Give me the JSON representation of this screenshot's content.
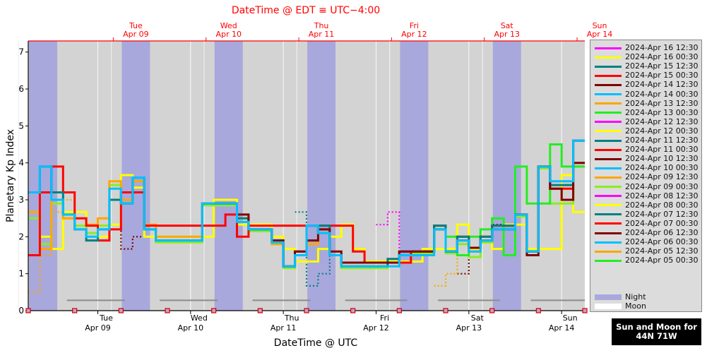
{
  "chart_data": {
    "type": "line",
    "title": "DateTime @ EDT ≡ UTC−4:00",
    "xlabel": "DateTime @ UTC",
    "ylabel": "Planetary Kp Index",
    "ylim": [
      0,
      7.3
    ],
    "yticks": [
      0,
      1,
      2,
      3,
      4,
      5,
      6,
      7
    ],
    "xlim_hours": [
      0,
      144
    ],
    "x_start_utc": "2024-04-08 06:00",
    "bottom_ticks": [
      {
        "day": "Tue",
        "date": "Apr 09"
      },
      {
        "day": "Wed",
        "date": "Apr 10"
      },
      {
        "day": "Thu",
        "date": "Apr 11"
      },
      {
        "day": "Fri",
        "date": "Apr 12"
      },
      {
        "day": "Sat",
        "date": "Apr 13"
      },
      {
        "day": "Sun",
        "date": "Apr 14"
      }
    ],
    "top_ticks": [
      {
        "day": "Tue",
        "date": "Apr 09"
      },
      {
        "day": "Wed",
        "date": "Apr 10"
      },
      {
        "day": "Thu",
        "date": "Apr 11"
      },
      {
        "day": "Fri",
        "date": "Apr 12"
      },
      {
        "day": "Sat",
        "date": "Apr 13"
      },
      {
        "day": "Sun",
        "date": "Apr 14"
      }
    ],
    "night_intervals_hours": [
      [
        0.2,
        7.5
      ],
      [
        24.2,
        31.5
      ],
      [
        48.2,
        55.5
      ],
      [
        72.2,
        79.5
      ],
      [
        96.2,
        103.5
      ],
      [
        120.2,
        127.5
      ]
    ],
    "moon_intervals_hours": [
      [
        10,
        25
      ],
      [
        34,
        49
      ],
      [
        58,
        73
      ],
      [
        82,
        98
      ],
      [
        106,
        122
      ],
      [
        130,
        144
      ]
    ],
    "legend": {
      "placement": "right",
      "entries": [
        {
          "name": "2024-Apr 16 12:30",
          "color": "#ff00ff"
        },
        {
          "name": "2024-Apr 16 00:30",
          "color": "#ffff00"
        },
        {
          "name": "2024-Apr 15 12:30",
          "color": "#008080"
        },
        {
          "name": "2024-Apr 15 00:30",
          "color": "#ff0000"
        },
        {
          "name": "2024-Apr 14 12:30",
          "color": "#800000"
        },
        {
          "name": "2024-Apr 14 00:30",
          "color": "#00bfff"
        },
        {
          "name": "2024-Apr 13 12:30",
          "color": "#ffa500"
        },
        {
          "name": "2024-Apr 13 00:30",
          "color": "#22ee22"
        },
        {
          "name": "2024-Apr 12 12:30",
          "color": "#ff00ff"
        },
        {
          "name": "2024-Apr 12 00:30",
          "color": "#ffff00"
        },
        {
          "name": "2024-Apr 11 12:30",
          "color": "#008080"
        },
        {
          "name": "2024-Apr 11 00:30",
          "color": "#ff0000"
        },
        {
          "name": "2024-Apr 10 12:30",
          "color": "#800000"
        },
        {
          "name": "2024-Apr 10 00:30",
          "color": "#00bfff"
        },
        {
          "name": "2024-Apr 09 12:30",
          "color": "#ffa500"
        },
        {
          "name": "2024-Apr 09 00:30",
          "color": "#88ee22"
        },
        {
          "name": "2024-Apr 08 12:30",
          "color": "#ff00ff"
        },
        {
          "name": "2024-Apr 08 00:30",
          "color": "#ffff00"
        },
        {
          "name": "2024-Apr 07 12:30",
          "color": "#008080"
        },
        {
          "name": "2024-Apr 07 00:30",
          "color": "#ff0000"
        },
        {
          "name": "2024-Apr 06 12:30",
          "color": "#800000"
        },
        {
          "name": "2024-Apr 06 00:30",
          "color": "#00bfff"
        },
        {
          "name": "2024-Apr 05 12:30",
          "color": "#ffa500"
        },
        {
          "name": "2024-Apr 05 00:30",
          "color": "#22ee22"
        }
      ],
      "extra": [
        {
          "name": "Night",
          "color": "#a8a8dc"
        },
        {
          "name": "Moon",
          "color": "#ffffff"
        }
      ]
    },
    "series": [
      {
        "color": "#ff00ff",
        "style": "dotted",
        "x": [
          90,
          93,
          96
        ],
        "y": [
          2.33,
          2.67,
          1.5
        ]
      },
      {
        "color": "#800000",
        "style": "dotted",
        "x": [
          21,
          24,
          27,
          30
        ],
        "y": [
          3.0,
          1.67,
          2.0,
          2.0
        ]
      },
      {
        "color": "#ffa500",
        "style": "dotted",
        "x": [
          0,
          3,
          6,
          9
        ],
        "y": [
          0.5,
          1.5,
          2.67,
          3.0
        ]
      },
      {
        "color": "#008080",
        "style": "dotted",
        "x": [
          69,
          72,
          75,
          78
        ],
        "y": [
          2.67,
          0.67,
          1.0,
          2.0
        ]
      },
      {
        "color": "#800000",
        "style": "dotted",
        "x": [
          111,
          114,
          117,
          120
        ],
        "y": [
          1.0,
          2.0,
          2.0,
          2.33
        ]
      },
      {
        "color": "#ffa500",
        "style": "dotted",
        "x": [
          105,
          108,
          111
        ],
        "y": [
          0.67,
          1.0,
          2.0
        ]
      },
      {
        "color": "#ffff00",
        "style": "solid",
        "x": [
          0,
          3,
          6,
          9,
          12,
          15,
          18,
          21,
          24,
          27,
          30,
          33,
          36,
          39,
          42,
          45,
          48,
          51,
          54,
          57,
          60,
          63,
          66,
          69,
          72,
          75,
          78,
          81,
          84,
          87,
          90,
          93,
          96,
          99,
          102,
          105,
          108,
          111,
          114,
          117,
          120,
          123,
          126,
          129,
          132,
          135,
          138,
          141
        ],
        "y": [
          2.67,
          2.0,
          1.67,
          2.67,
          2.67,
          2.33,
          2.0,
          2.33,
          3.67,
          3.33,
          2.0,
          2.0,
          2.0,
          2.0,
          2.0,
          2.0,
          3.0,
          3.0,
          2.33,
          2.33,
          2.33,
          2.0,
          1.67,
          1.33,
          1.33,
          1.67,
          2.0,
          2.33,
          1.67,
          1.33,
          1.33,
          1.33,
          1.33,
          1.33,
          1.67,
          1.67,
          1.67,
          2.33,
          1.67,
          2.0,
          1.67,
          2.33,
          2.33,
          1.67,
          1.67,
          1.67,
          3.67,
          2.67
        ]
      },
      {
        "color": "#88ee22",
        "style": "solid",
        "x": [
          0,
          3,
          6,
          9,
          12,
          15,
          18,
          21,
          24,
          27,
          30,
          33,
          36,
          39,
          42,
          45,
          48,
          51,
          54,
          57,
          60,
          63,
          66,
          69,
          72,
          75,
          78,
          81,
          84,
          87,
          90,
          93,
          96,
          99,
          102,
          105,
          108,
          111,
          114,
          117,
          120,
          123,
          126,
          129,
          132,
          135,
          138,
          141
        ],
        "y": [
          2.5,
          1.8,
          2.9,
          2.5,
          2.3,
          2.1,
          2.3,
          3.4,
          2.9,
          3.5,
          2.2,
          1.85,
          1.85,
          1.85,
          1.85,
          2.85,
          2.85,
          2.85,
          2.4,
          2.15,
          2.15,
          1.8,
          1.15,
          1.5,
          1.8,
          2.1,
          1.5,
          1.15,
          1.15,
          1.15,
          1.15,
          1.3,
          1.3,
          1.55,
          1.55,
          2.2,
          1.55,
          1.8,
          1.45,
          1.85,
          2.2,
          2.2,
          2.55,
          1.6,
          3.85,
          2.9,
          2.9,
          3.9
        ]
      },
      {
        "color": "#22ee22",
        "style": "solid",
        "x": [
          108,
          111,
          114,
          117,
          120,
          123,
          126,
          129,
          132,
          135,
          138,
          141
        ],
        "y": [
          2.0,
          1.5,
          2.0,
          2.2,
          2.5,
          1.5,
          3.9,
          2.9,
          2.9,
          4.5,
          3.9,
          3.9
        ]
      },
      {
        "color": "#ffa500",
        "style": "solid",
        "x": [
          0,
          3,
          6,
          9,
          12,
          15,
          18,
          21,
          24,
          27,
          30,
          33,
          36,
          39,
          42,
          45,
          48,
          51,
          54,
          57,
          60,
          63,
          66,
          69,
          72,
          75,
          78,
          81,
          84,
          87,
          90,
          93,
          96,
          99,
          102,
          105,
          108,
          111,
          114,
          117,
          120,
          123,
          126,
          129,
          132,
          135,
          138,
          141
        ],
        "y": [
          2.67,
          1.67,
          3.0,
          2.5,
          2.5,
          2.33,
          2.5,
          3.5,
          3.0,
          3.5,
          2.33,
          2.0,
          2.0,
          2.0,
          2.0,
          2.9,
          2.9,
          2.9,
          2.5,
          2.2,
          2.2,
          1.8,
          1.2,
          1.5,
          1.8,
          2.2,
          1.5,
          1.2,
          1.2,
          1.2,
          1.2,
          1.3,
          1.6,
          1.6,
          1.6,
          2.3,
          1.6,
          1.9,
          1.6,
          1.9,
          2.3,
          2.3,
          2.6,
          1.6,
          3.9,
          3.3,
          3.3,
          4.6
        ]
      },
      {
        "color": "#ff0000",
        "style": "solid",
        "x": [
          0,
          3,
          6,
          9,
          12,
          15,
          18,
          21,
          24,
          27,
          30,
          33,
          36,
          39,
          42,
          45,
          48,
          51,
          54,
          57,
          60,
          63,
          66,
          69,
          72,
          75,
          78,
          81,
          84,
          87,
          90,
          93,
          96,
          99,
          102,
          105,
          108,
          111,
          114,
          117,
          120,
          123,
          126,
          129,
          132,
          135,
          138,
          141
        ],
        "y": [
          1.5,
          3.2,
          3.9,
          3.2,
          2.5,
          2.3,
          1.9,
          2.2,
          3.2,
          3.2,
          2.3,
          2.3,
          2.3,
          2.3,
          2.3,
          2.3,
          2.3,
          2.6,
          2.0,
          2.3,
          2.3,
          2.3,
          2.3,
          2.3,
          2.3,
          2.3,
          2.3,
          2.3,
          1.6,
          1.3,
          1.3,
          1.3,
          1.3,
          1.6,
          1.6,
          2.3,
          1.6,
          2.0,
          1.7,
          2.0,
          2.3,
          2.3,
          2.6,
          1.6,
          3.9,
          3.3,
          3.3,
          4.6
        ]
      },
      {
        "color": "#008080",
        "style": "solid",
        "x": [
          0,
          3,
          6,
          9,
          12,
          15,
          18,
          21,
          24,
          27,
          30,
          33,
          36,
          39,
          42,
          45,
          48,
          51,
          54,
          57,
          60,
          63,
          66,
          69,
          72,
          75,
          78,
          81,
          84,
          87,
          90,
          93,
          96,
          99,
          102,
          105,
          108,
          111,
          114,
          117,
          120,
          123,
          126,
          129,
          132,
          135,
          138,
          141
        ],
        "y": [
          3.2,
          3.9,
          3.2,
          2.6,
          2.2,
          1.9,
          2.2,
          3.0,
          2.9,
          3.6,
          2.2,
          1.9,
          1.9,
          1.9,
          1.9,
          2.9,
          2.9,
          2.9,
          2.5,
          2.2,
          2.2,
          1.9,
          1.2,
          1.6,
          2.3,
          2.3,
          1.5,
          1.2,
          1.2,
          1.2,
          1.2,
          1.4,
          1.6,
          1.6,
          1.6,
          2.3,
          1.6,
          2.0,
          1.7,
          2.0,
          2.3,
          2.3,
          2.6,
          1.6,
          3.9,
          3.4,
          3.4,
          4.6
        ]
      },
      {
        "color": "#800000",
        "style": "solid",
        "x": [
          48,
          51,
          54,
          57,
          60,
          63,
          66,
          69,
          72,
          75,
          78,
          81,
          84,
          87,
          90,
          93,
          96,
          99,
          102,
          105,
          108,
          111,
          114,
          117,
          120,
          123,
          126,
          129,
          132,
          135,
          138,
          141
        ],
        "y": [
          2.9,
          2.9,
          2.6,
          2.2,
          2.2,
          1.9,
          1.2,
          1.6,
          1.9,
          2.2,
          1.6,
          1.3,
          1.3,
          1.3,
          1.3,
          1.3,
          1.6,
          1.6,
          1.6,
          2.2,
          1.6,
          1.9,
          1.7,
          1.9,
          2.2,
          2.2,
          2.6,
          1.5,
          3.9,
          3.3,
          3.0,
          4.0
        ]
      },
      {
        "color": "#00bfff",
        "style": "solid",
        "x": [
          0,
          3,
          6,
          9,
          12,
          15,
          18,
          21,
          24,
          27,
          30,
          33,
          36,
          39,
          42,
          45,
          48,
          51,
          54,
          57,
          60,
          63,
          66,
          69,
          72,
          75,
          78,
          81,
          84,
          87,
          90,
          93,
          96,
          99,
          102,
          105,
          108,
          111,
          114,
          117,
          120,
          123,
          126,
          129,
          132,
          135,
          138,
          141
        ],
        "y": [
          3.2,
          3.9,
          3.0,
          2.6,
          2.2,
          2.0,
          2.2,
          3.3,
          2.9,
          3.6,
          2.2,
          1.9,
          1.9,
          1.9,
          1.9,
          2.9,
          2.9,
          2.9,
          2.4,
          2.2,
          2.2,
          1.85,
          1.2,
          1.5,
          2.3,
          2.1,
          1.5,
          1.2,
          1.2,
          1.2,
          1.2,
          1.2,
          1.5,
          1.5,
          1.5,
          2.2,
          1.6,
          1.9,
          1.6,
          1.9,
          2.2,
          2.2,
          2.6,
          1.6,
          3.9,
          3.5,
          3.5,
          4.6
        ]
      }
    ],
    "sun_moon_caption": "Sun and Moon for 44N 71W"
  }
}
